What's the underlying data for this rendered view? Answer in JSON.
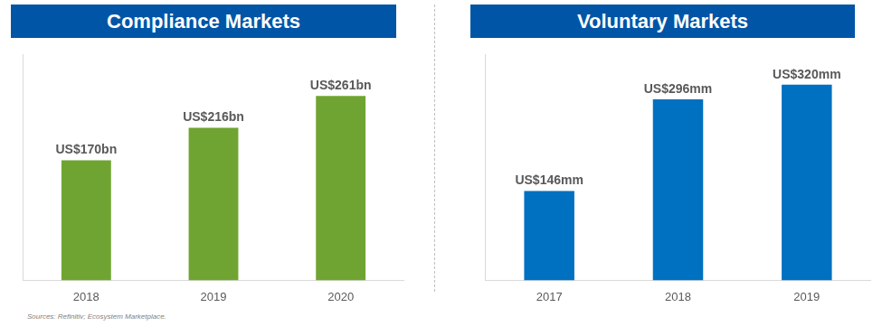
{
  "chart_data": [
    {
      "type": "bar",
      "title": "Compliance Markets",
      "categories": [
        "2018",
        "2019",
        "2020"
      ],
      "values": [
        170,
        216,
        261
      ],
      "value_labels": [
        "US$170bn",
        "US$216bn",
        "US$261bn"
      ],
      "color": "#70a432",
      "ylim": [
        0,
        320
      ],
      "grid": false,
      "data_labels": true,
      "tick_labels": "x"
    },
    {
      "type": "bar",
      "title": "Voluntary Markets",
      "categories": [
        "2017",
        "2018",
        "2019"
      ],
      "values": [
        146,
        296,
        320
      ],
      "value_labels": [
        "US$146mm",
        "US$296mm",
        "US$320mm"
      ],
      "color": "#0070c0",
      "ylim": [
        0,
        370
      ],
      "grid": false,
      "data_labels": true,
      "tick_labels": "x"
    }
  ],
  "source": "Sources: Refinitiv; Ecosystem Marketplace."
}
